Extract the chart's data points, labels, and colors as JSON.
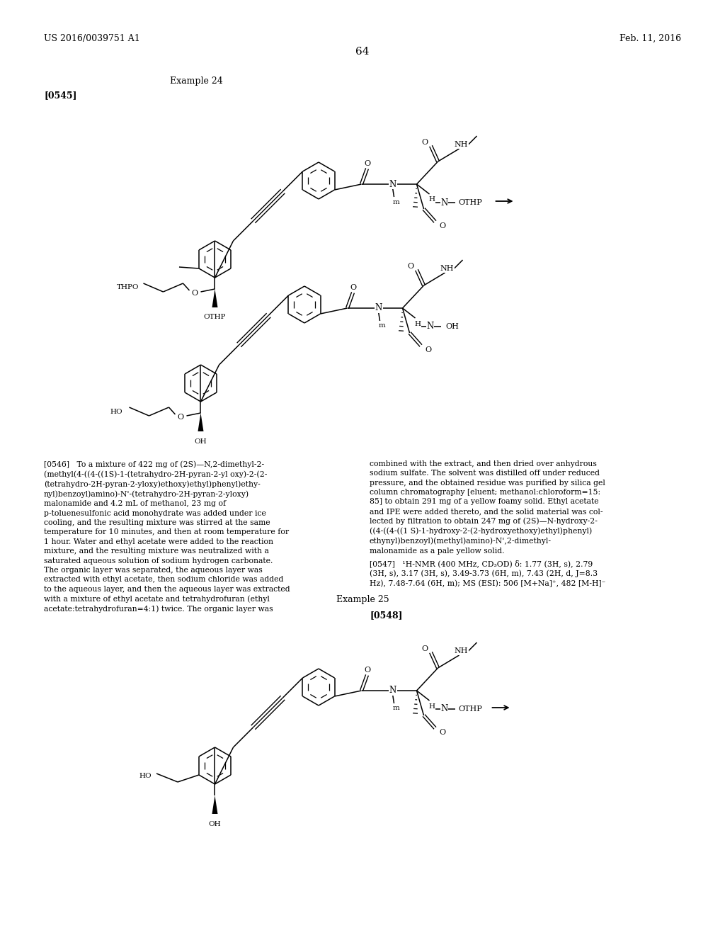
{
  "page_header_left": "US 2016/0039751 A1",
  "page_header_right": "Feb. 11, 2016",
  "page_number": "64",
  "example_label": "Example 24",
  "para_0545": "[0545]",
  "para_0546_left": "[0546]   To a mixture of 422 mg of (2S)—N,2-dimethyl-2-\n(methyl(4-((4-((1S)-1-(tetrahydro-2H-pyran-2-yl oxy)-2-(2-\n(tetrahydro-2H-pyran-2-yloxy)ethoxy)ethyl)phenyl)ethy-\nnyl)benzoyl)amino)-N'-(tetrahydro-2H-pyran-2-yloxy)\nmalonamide and 4.2 mL of methanol, 23 mg of\np-toluenesulfonic acid monohydrate was added under ice\ncooling, and the resulting mixture was stirred at the same\ntemperature for 10 minutes, and then at room temperature for\n1 hour. Water and ethyl acetate were added to the reaction\nmixture, and the resulting mixture was neutralized with a\nsaturated aqueous solution of sodium hydrogen carbonate.\nThe organic layer was separated, the aqueous layer was\nextracted with ethyl acetate, then sodium chloride was added\nto the aqueous layer, and then the aqueous layer was extracted\nwith a mixture of ethyl acetate and tetrahydrofuran (ethyl\nacetate:tetrahydrofuran=4:1) twice. The organic layer was",
  "para_0546_right": "combined with the extract, and then dried over anhydrous\nsodium sulfate. The solvent was distilled off under reduced\npressure, and the obtained residue was purified by silica gel\ncolumn chromatography [eluent; methanol:chloroform=15:\n85] to obtain 291 mg of a yellow foamy solid. Ethyl acetate\nand IPE were added thereto, and the solid material was col-\nlected by filtration to obtain 247 mg of (2S)—N-hydroxy-2-\n((4-((4-((1 S)-1-hydroxy-2-(2-hydroxyethoxy)ethyl)phenyl)\nethynyl)benzoyl)(methyl)amino)-N',2-dimethyl-\nmalonamide as a pale yellow solid.",
  "para_0547": "[0547]   ¹H-NMR (400 MHz, CD₃OD) δ: 1.77 (3H, s), 2.79\n(3H, s), 3.17 (3H, s), 3.49-3.73 (6H, m), 7.43 (2H, d, J=8.3\nHz), 7.48-7.64 (6H, m); MS (ESI): 506 [M+Na]⁺, 482 [M-H]⁻",
  "example_25": "Example 25",
  "para_0548": "[0548]",
  "background_color": "#ffffff"
}
